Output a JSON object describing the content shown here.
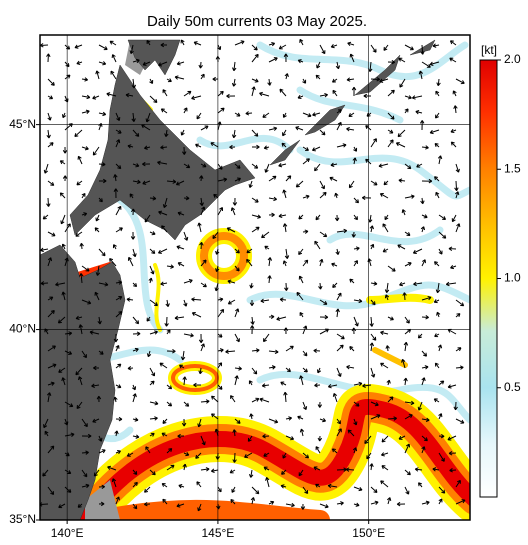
{
  "map": {
    "title": "Daily 50m currents 03 May 2025.",
    "lon_range": [
      139.1,
      153.36
    ],
    "lat_range": [
      35,
      47.06
    ],
    "lon_ticks": [
      {
        "value": 140,
        "label": "140°E"
      },
      {
        "value": 145,
        "label": "145°E"
      },
      {
        "value": 150,
        "label": "150°E"
      }
    ],
    "lat_ticks": [
      {
        "value": 35,
        "label": "35°N"
      },
      {
        "value": 40,
        "label": "40°N"
      },
      {
        "value": 45,
        "label": "45°N"
      }
    ],
    "colorbar": {
      "title": "[kt]",
      "range": [
        0,
        2
      ],
      "ticks": [
        0.5,
        {
          "value": 1,
          "label": "1.0"
        },
        1.5,
        {
          "value": 2,
          "label": "2.0"
        }
      ]
    }
  }
}
